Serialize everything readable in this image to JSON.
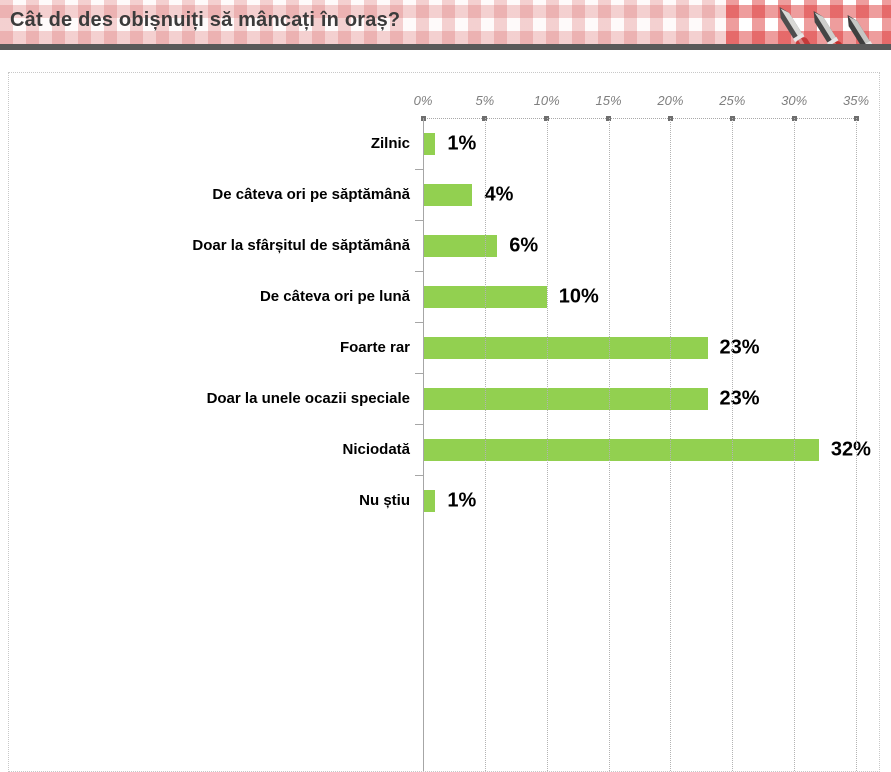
{
  "header": {
    "title": "Cât de des obișnuiți să mâncați în oraș?",
    "decoration": "cutlery-on-gingham-photo"
  },
  "colors": {
    "bar_green": "#92d050",
    "header_divider_gray": "#595959",
    "gingham_red": "#d94f4f",
    "tick_label_gray": "#7f7f7f",
    "knife_handle_red": "#c43b3b"
  },
  "chart_data": {
    "type": "bar",
    "orientation": "horizontal",
    "title": "Cât de des obișnuiți să mâncați în oraș?",
    "categories": [
      "Zilnic",
      "De câteva ori pe săptămână",
      "Doar la sfârșitul de săptămână",
      "De câteva ori pe lună",
      "Foarte rar",
      "Doar la unele ocazii speciale",
      "Niciodată",
      "Nu știu"
    ],
    "values": [
      1,
      4,
      6,
      10,
      23,
      23,
      32,
      1
    ],
    "value_labels": [
      "1%",
      "4%",
      "6%",
      "10%",
      "23%",
      "23%",
      "32%",
      "1%"
    ],
    "x_ticks": [
      "0%",
      "5%",
      "10%",
      "15%",
      "20%",
      "25%",
      "30%",
      "35%"
    ],
    "xlim": [
      0,
      35
    ],
    "xlabel": "",
    "ylabel": "",
    "grid": true,
    "gridline_style": "dotted",
    "value_axis_position": "top",
    "bar_color": "#92d050",
    "legend": false
  }
}
